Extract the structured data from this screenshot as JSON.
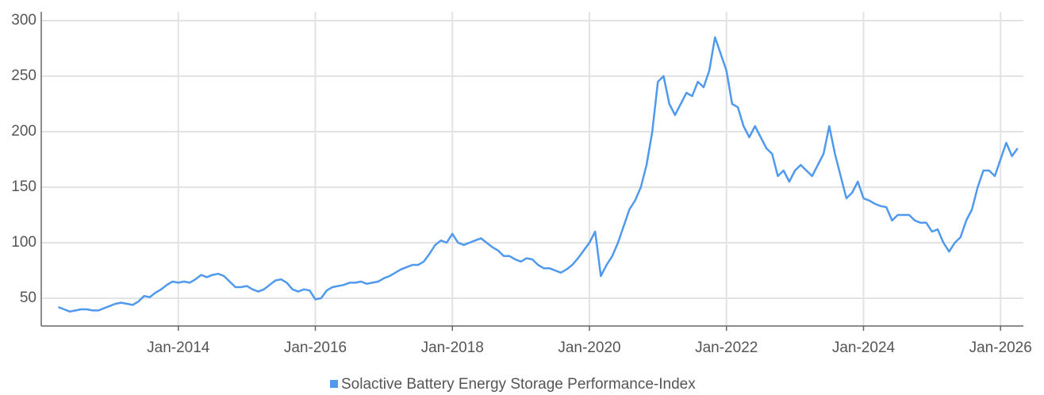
{
  "chart_data": {
    "type": "line",
    "x": [
      "2012-04",
      "2012-05",
      "2012-06",
      "2012-07",
      "2012-08",
      "2012-09",
      "2012-10",
      "2012-11",
      "2012-12",
      "2013-01",
      "2013-02",
      "2013-03",
      "2013-04",
      "2013-05",
      "2013-06",
      "2013-07",
      "2013-08",
      "2013-09",
      "2013-10",
      "2013-11",
      "2013-12",
      "2014-01",
      "2014-02",
      "2014-03",
      "2014-04",
      "2014-05",
      "2014-06",
      "2014-07",
      "2014-08",
      "2014-09",
      "2014-10",
      "2014-11",
      "2014-12",
      "2015-01",
      "2015-02",
      "2015-03",
      "2015-04",
      "2015-05",
      "2015-06",
      "2015-07",
      "2015-08",
      "2015-09",
      "2015-10",
      "2015-11",
      "2015-12",
      "2016-01",
      "2016-02",
      "2016-03",
      "2016-04",
      "2016-05",
      "2016-06",
      "2016-07",
      "2016-08",
      "2016-09",
      "2016-10",
      "2016-11",
      "2016-12",
      "2017-01",
      "2017-02",
      "2017-03",
      "2017-04",
      "2017-05",
      "2017-06",
      "2017-07",
      "2017-08",
      "2017-09",
      "2017-10",
      "2017-11",
      "2017-12",
      "2018-01",
      "2018-02",
      "2018-03",
      "2018-04",
      "2018-05",
      "2018-06",
      "2018-07",
      "2018-08",
      "2018-09",
      "2018-10",
      "2018-11",
      "2018-12",
      "2019-01",
      "2019-02",
      "2019-03",
      "2019-04",
      "2019-05",
      "2019-06",
      "2019-07",
      "2019-08",
      "2019-09",
      "2019-10",
      "2019-11",
      "2019-12",
      "2020-01",
      "2020-02",
      "2020-03",
      "2020-04",
      "2020-05",
      "2020-06",
      "2020-07",
      "2020-08",
      "2020-09",
      "2020-10",
      "2020-11",
      "2020-12",
      "2021-01",
      "2021-02",
      "2021-03",
      "2021-04",
      "2021-05",
      "2021-06",
      "2021-07",
      "2021-08",
      "2021-09",
      "2021-10",
      "2021-11",
      "2021-12",
      "2022-01",
      "2022-02",
      "2022-03",
      "2022-04",
      "2022-05",
      "2022-06",
      "2022-07",
      "2022-08",
      "2022-09",
      "2022-10",
      "2022-11",
      "2022-12",
      "2023-01",
      "2023-02",
      "2023-03",
      "2023-04",
      "2023-05",
      "2023-06",
      "2023-07",
      "2023-08",
      "2023-09",
      "2023-10",
      "2023-11",
      "2023-12",
      "2024-01",
      "2024-02",
      "2024-03",
      "2024-04",
      "2024-05",
      "2024-06",
      "2024-07",
      "2024-08",
      "2024-09",
      "2024-10",
      "2024-11",
      "2024-12",
      "2025-01",
      "2025-02",
      "2025-03",
      "2025-04",
      "2025-05",
      "2025-06",
      "2025-07",
      "2025-08",
      "2025-09",
      "2025-10",
      "2025-11",
      "2025-12",
      "2026-01",
      "2026-02",
      "2026-03",
      "2026-04"
    ],
    "series": [
      {
        "name": "Solactive Battery Energy Storage Performance-Index",
        "color": "#4f99ee",
        "values": [
          42,
          40,
          38,
          39,
          40,
          40,
          39,
          39,
          41,
          43,
          45,
          46,
          45,
          44,
          47,
          52,
          51,
          55,
          58,
          62,
          65,
          64,
          65,
          64,
          67,
          71,
          69,
          71,
          72,
          70,
          65,
          60,
          60,
          61,
          58,
          56,
          58,
          62,
          66,
          67,
          64,
          58,
          56,
          58,
          57,
          49,
          50,
          57,
          60,
          61,
          62,
          64,
          64,
          65,
          63,
          64,
          65,
          68,
          70,
          73,
          76,
          78,
          80,
          80,
          83,
          90,
          98,
          102,
          100,
          108,
          100,
          98,
          100,
          102,
          104,
          100,
          96,
          93,
          88,
          88,
          85,
          83,
          86,
          85,
          80,
          77,
          77,
          75,
          73,
          76,
          80,
          86,
          93,
          100,
          110,
          70,
          80,
          88,
          100,
          115,
          130,
          138,
          150,
          170,
          200,
          245,
          250,
          225,
          215,
          225,
          235,
          232,
          245,
          240,
          255,
          285,
          270,
          255,
          225,
          222,
          205,
          195,
          205,
          195,
          185,
          180,
          160,
          165,
          155,
          165,
          170,
          165,
          160,
          170,
          180,
          205,
          180,
          160,
          140,
          145,
          155,
          140,
          138,
          135,
          133,
          132,
          120,
          125,
          125,
          125,
          120,
          118,
          118,
          110,
          112,
          100,
          92,
          100,
          105,
          120,
          130,
          150,
          165,
          165,
          160,
          175,
          190,
          178,
          185
        ]
      }
    ],
    "xlim": [
      "2012-01",
      "2026-05"
    ],
    "xticks": [
      {
        "value": "2014-01",
        "label": "Jan-2014"
      },
      {
        "value": "2016-01",
        "label": "Jan-2016"
      },
      {
        "value": "2018-01",
        "label": "Jan-2018"
      },
      {
        "value": "2020-01",
        "label": "Jan-2020"
      },
      {
        "value": "2022-01",
        "label": "Jan-2022"
      },
      {
        "value": "2024-01",
        "label": "Jan-2024"
      },
      {
        "value": "2026-01",
        "label": "Jan-2026"
      }
    ],
    "ylim": [
      25,
      305
    ],
    "yticks": [
      50,
      100,
      150,
      200,
      250,
      300
    ],
    "grid": true,
    "legend": "bottom"
  }
}
